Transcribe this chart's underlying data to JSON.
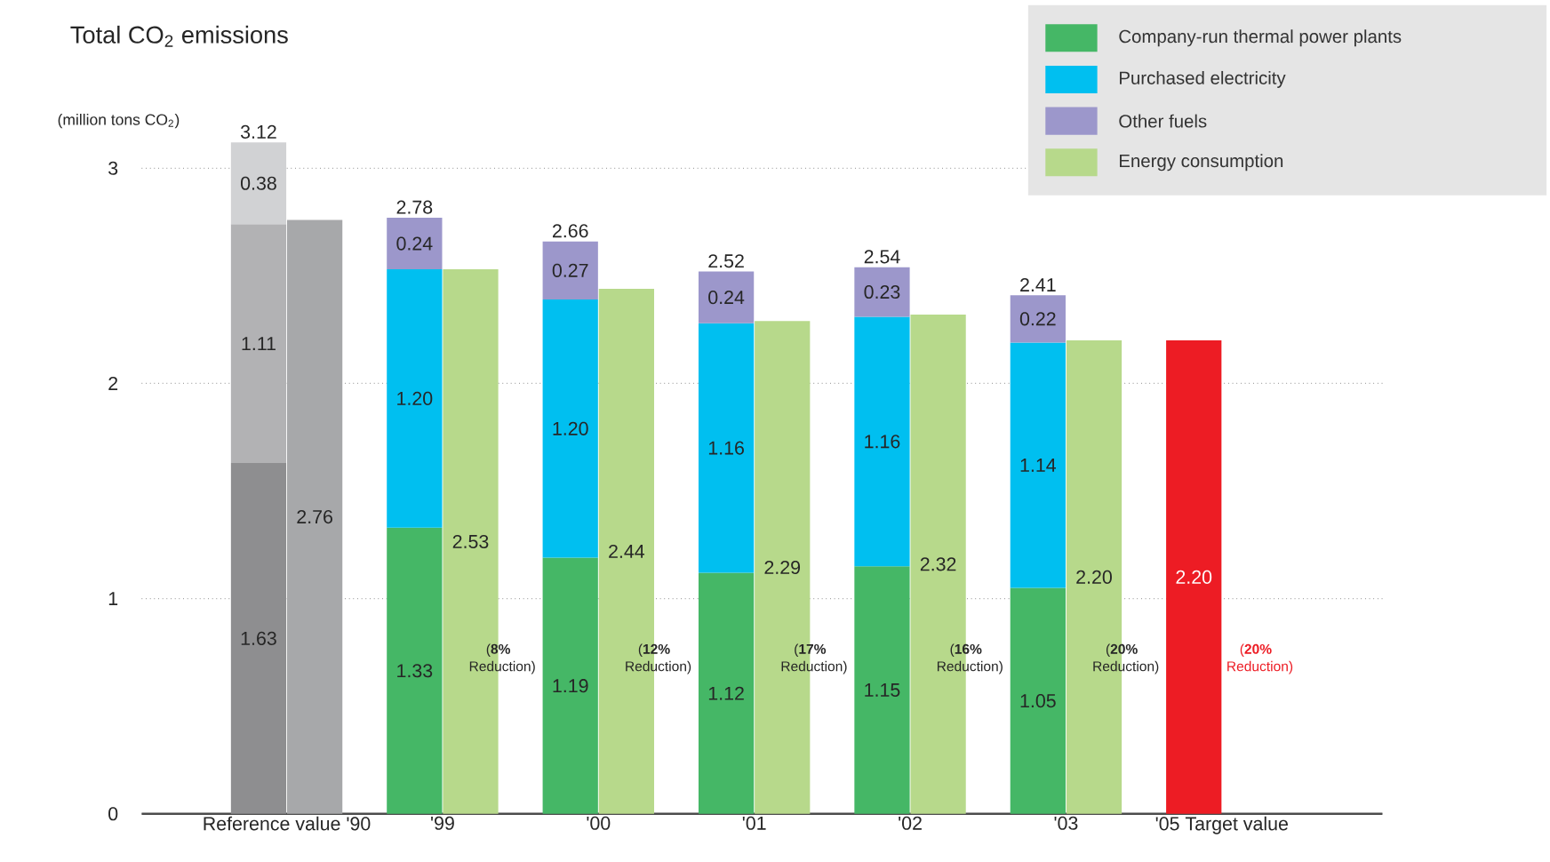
{
  "chart_data": [
    {
      "type": "bar",
      "title": "Total CO$_{2}$ emissions",
      "ylabel": "(million tons CO$_{2}$)",
      "categories": [
        "Reference value '90",
        "'99",
        "'00",
        "'01",
        "'02",
        "'03",
        "'05 Target value"
      ],
      "stacked": true,
      "series": [
        {
          "name": "Company-run thermal power plants",
          "color": "#45b766",
          "colors": [
            "#8e8e90",
            "#45b766",
            "#45b766",
            "#45b766",
            "#45b766",
            "#45b766",
            "#ed1c24"
          ],
          "values": [
            1.63,
            1.33,
            1.19,
            1.12,
            1.15,
            1.05,
            2.2
          ],
          "value_labels": [
            "1.63",
            "1.33",
            "1.19",
            "1.12",
            "1.15",
            "1.05",
            "2.20"
          ]
        },
        {
          "name": "Purchased electricity",
          "color": "#00bff0",
          "colors": [
            "#b2b2b4",
            "#00bff0",
            "#00bff0",
            "#00bff0",
            "#00bff0",
            "#00bff0",
            "#00bff0"
          ],
          "values": [
            1.11,
            1.2,
            1.2,
            1.16,
            1.16,
            1.14,
            null
          ],
          "value_labels": [
            "1.11",
            "1.20",
            "1.20",
            "1.16",
            "1.16",
            "1.14",
            null
          ]
        },
        {
          "name": "Other fuels",
          "color": "#9c97cb",
          "colors": [
            "#d1d2d4",
            "#9c97cb",
            "#9c97cb",
            "#9c97cb",
            "#9c97cb",
            "#9c97cb",
            "#9c97cb"
          ],
          "values": [
            0.38,
            0.24,
            0.27,
            0.24,
            0.23,
            0.22,
            null
          ],
          "value_labels": [
            "0.38",
            "0.24",
            "0.27",
            "0.24",
            "0.23",
            "0.22",
            null
          ]
        }
      ],
      "totals": [
        "3.12",
        "2.78",
        "2.66",
        "2.52",
        "2.54",
        "2.41",
        null
      ],
      "ylim": [
        0,
        3.3
      ],
      "yticks": [
        0,
        1,
        2,
        3
      ],
      "grid": "y",
      "legend": "top right",
      "annotations": [
        {
          "text": "(**20%** Reduction)",
          "x": "'05 Target value",
          "y": 0.72
        }
      ]
    },
    {
      "type": "bar",
      "categories": [
        "Reference value '90",
        "'99",
        "'00",
        "'01",
        "'02",
        "'03",
        "'05 Target value"
      ],
      "series": [
        {
          "name": "Energy consumption",
          "color": "#b7d98b",
          "colors": [
            "#a7a8aa",
            "#b7d98b",
            "#b7d98b",
            "#b7d98b",
            "#b7d98b",
            "#b7d98b",
            "#b7d98b"
          ],
          "values": [
            2.76,
            2.53,
            2.44,
            2.29,
            2.32,
            2.2,
            null
          ],
          "value_labels": [
            "2.76",
            "2.53",
            "2.44",
            "2.29",
            "2.32",
            "2.20",
            null
          ]
        }
      ],
      "tick_labels": false,
      "legend": "top right",
      "annotations": [
        {
          "text": "(**8%** Reduction)",
          "x": "'99",
          "y": 0.72
        },
        {
          "text": "(**12%** Reduction)",
          "x": "'00",
          "y": 0.72
        },
        {
          "text": "(**17%** Reduction)",
          "x": "'01",
          "y": 0.72
        },
        {
          "text": "(**16%** Reduction)",
          "x": "'02",
          "y": 0.72
        },
        {
          "text": "(**20%** Reduction)",
          "x": "'03",
          "y": 0.72
        }
      ]
    }
  ]
}
